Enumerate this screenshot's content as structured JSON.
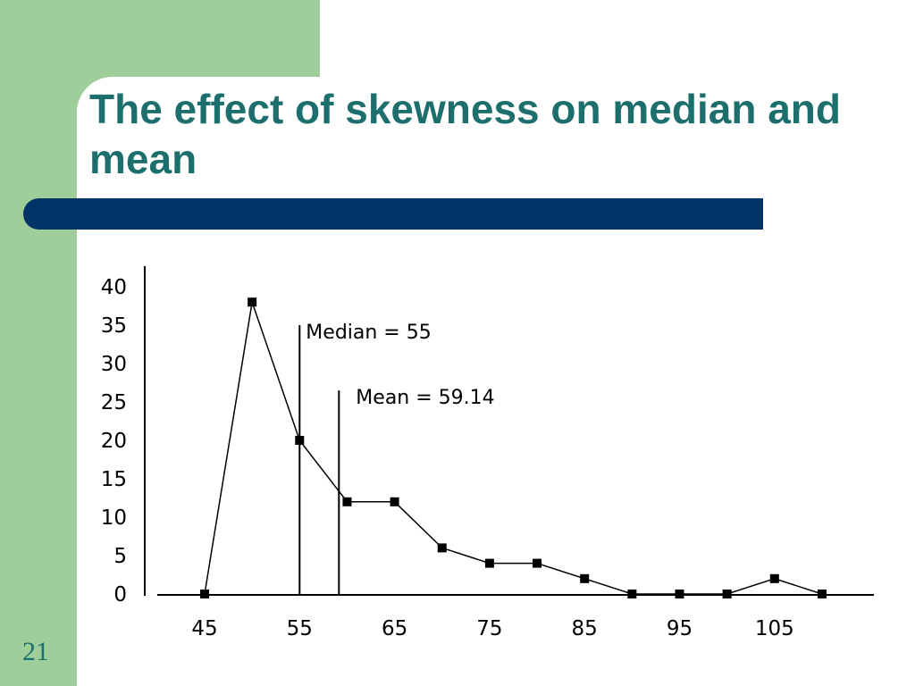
{
  "slide": {
    "title": "The effect of skewness on median and mean",
    "number": "21"
  },
  "colors": {
    "green_band": "#9fce9b",
    "title_text": "#1c6f6c",
    "title_bar": "#003366"
  },
  "chart_data": {
    "type": "line",
    "x": [
      45,
      50,
      55,
      60,
      65,
      70,
      75,
      80,
      85,
      90,
      95,
      100,
      105,
      110
    ],
    "series": [
      {
        "values": [
          0,
          38,
          20,
          12,
          12,
          6,
          4,
          4,
          2,
          0,
          0,
          0,
          2,
          0
        ]
      }
    ],
    "x_ticks": [
      45,
      55,
      65,
      75,
      85,
      95,
      105
    ],
    "x_tick_labels": [
      "45",
      "55",
      "65",
      "75",
      "85",
      "95",
      "105"
    ],
    "y_ticks": [
      0,
      5,
      10,
      15,
      20,
      25,
      30,
      35,
      40
    ],
    "y_tick_labels": [
      "0",
      "5",
      "10",
      "15",
      "20",
      "25",
      "30",
      "35",
      "40"
    ],
    "xlim": [
      40,
      116
    ],
    "ylim": [
      0,
      42
    ],
    "markers": "square",
    "annotations": [
      {
        "label": "Median = 55",
        "x": 55,
        "y_top": 35
      },
      {
        "label": "Mean = 59.14",
        "x": 59.14,
        "y_top": 26.5
      }
    ],
    "grid": false,
    "xlabel": "",
    "ylabel": ""
  }
}
